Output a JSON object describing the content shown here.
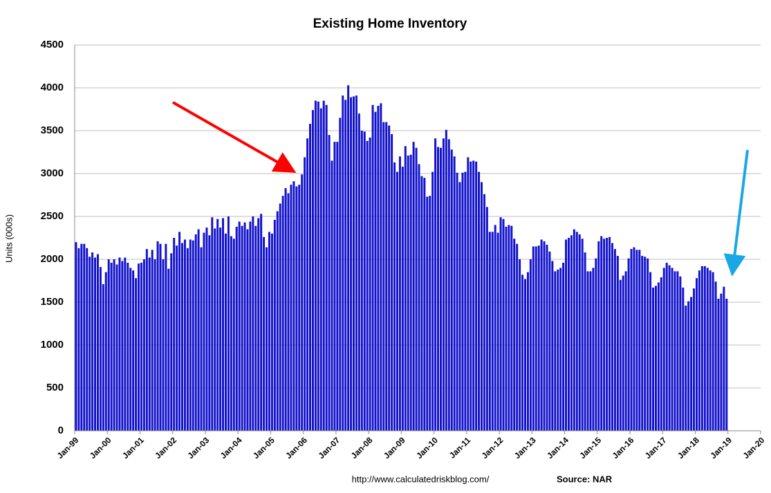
{
  "chart_data": {
    "type": "bar",
    "title": "Existing Home Inventory",
    "y_label": "Units (000s)",
    "source_url": "http://www.calculatedriskblog.com/",
    "source": "Source: NAR",
    "color": "#1212cc",
    "grid": true,
    "ylim": [
      0,
      4500
    ],
    "yticks": [
      0,
      500,
      1000,
      1500,
      2000,
      2500,
      3000,
      3500,
      4000,
      4500
    ],
    "categories": [
      "Jan-99",
      null,
      null,
      null,
      null,
      null,
      null,
      null,
      null,
      null,
      null,
      null,
      "Jan-00",
      null,
      null,
      null,
      null,
      null,
      null,
      null,
      null,
      null,
      null,
      null,
      "Jan-01",
      null,
      null,
      null,
      null,
      null,
      null,
      null,
      null,
      null,
      null,
      null,
      "Jan-02",
      null,
      null,
      null,
      null,
      null,
      null,
      null,
      null,
      null,
      null,
      null,
      "Jan-03",
      null,
      null,
      null,
      null,
      null,
      null,
      null,
      null,
      null,
      null,
      null,
      "Jan-04",
      null,
      null,
      null,
      null,
      null,
      null,
      null,
      null,
      null,
      null,
      null,
      "Jan-05",
      null,
      null,
      null,
      null,
      null,
      null,
      null,
      null,
      null,
      null,
      null,
      "Jan-06",
      null,
      null,
      null,
      null,
      null,
      null,
      null,
      null,
      null,
      null,
      null,
      "Jan-07",
      null,
      null,
      null,
      null,
      null,
      null,
      null,
      null,
      null,
      null,
      null,
      "Jan-08",
      null,
      null,
      null,
      null,
      null,
      null,
      null,
      null,
      null,
      null,
      null,
      "Jan-09",
      null,
      null,
      null,
      null,
      null,
      null,
      null,
      null,
      null,
      null,
      null,
      "Jan-10",
      null,
      null,
      null,
      null,
      null,
      null,
      null,
      null,
      null,
      null,
      null,
      "Jan-11",
      null,
      null,
      null,
      null,
      null,
      null,
      null,
      null,
      null,
      null,
      null,
      "Jan-12",
      null,
      null,
      null,
      null,
      null,
      null,
      null,
      null,
      null,
      null,
      null,
      "Jan-13",
      null,
      null,
      null,
      null,
      null,
      null,
      null,
      null,
      null,
      null,
      null,
      "Jan-14",
      null,
      null,
      null,
      null,
      null,
      null,
      null,
      null,
      null,
      null,
      null,
      "Jan-15",
      null,
      null,
      null,
      null,
      null,
      null,
      null,
      null,
      null,
      null,
      null,
      "Jan-16",
      null,
      null,
      null,
      null,
      null,
      null,
      null,
      null,
      null,
      null,
      null,
      "Jan-17",
      null,
      null,
      null,
      null,
      null,
      null,
      null,
      null,
      null,
      null,
      null,
      "Jan-18",
      null,
      null,
      null,
      null,
      null,
      null,
      null,
      null,
      null,
      null,
      null,
      "Jan-19",
      null,
      null,
      null,
      null,
      null,
      null,
      null,
      null,
      null,
      null,
      null,
      "Jan-20"
    ],
    "values": [
      2200,
      2130,
      2180,
      2180,
      2130,
      2030,
      2080,
      2020,
      2060,
      1910,
      1710,
      1850,
      2000,
      1960,
      2000,
      1940,
      2020,
      1980,
      2020,
      1960,
      1900,
      1870,
      1780,
      1950,
      1960,
      2000,
      2120,
      2020,
      2110,
      2000,
      2210,
      2180,
      2000,
      2180,
      1890,
      2070,
      2250,
      2160,
      2320,
      2190,
      2230,
      2130,
      2230,
      2220,
      2290,
      2350,
      2140,
      2310,
      2370,
      2280,
      2490,
      2360,
      2470,
      2370,
      2480,
      2300,
      2500,
      2270,
      2240,
      2380,
      2440,
      2390,
      2430,
      2350,
      2440,
      2500,
      2390,
      2480,
      2530,
      2260,
      2140,
      2320,
      2300,
      2460,
      2560,
      2650,
      2740,
      2830,
      2770,
      2870,
      2910,
      2850,
      2870,
      2990,
      3190,
      3410,
      3580,
      3740,
      3850,
      3840,
      3760,
      3850,
      3800,
      3450,
      3150,
      3370,
      3370,
      3650,
      3910,
      3860,
      4030,
      3890,
      3900,
      3910,
      3700,
      3500,
      3490,
      3380,
      3420,
      3800,
      3720,
      3790,
      3820,
      3600,
      3600,
      3560,
      3460,
      3130,
      3020,
      3200,
      3080,
      3320,
      3210,
      3220,
      3370,
      3300,
      3110,
      2970,
      2950,
      2730,
      2740,
      3020,
      3410,
      3310,
      3300,
      3410,
      3510,
      3400,
      3280,
      3200,
      3010,
      2900,
      3010,
      3020,
      3190,
      3140,
      3150,
      3140,
      3020,
      2900,
      2760,
      2610,
      2320,
      2320,
      2400,
      2310,
      2490,
      2470,
      2380,
      2400,
      2390,
      2240,
      2180,
      2000,
      1820,
      1770,
      1850,
      2000,
      2150,
      2150,
      2160,
      2230,
      2210,
      2170,
      2090,
      1980,
      1860,
      1880,
      1900,
      1960,
      2230,
      2250,
      2280,
      2350,
      2320,
      2290,
      2240,
      2080,
      1860,
      1860,
      1900,
      2010,
      2210,
      2270,
      2240,
      2250,
      2260,
      2190,
      2120,
      2040,
      1760,
      1810,
      1860,
      2010,
      2120,
      2140,
      2110,
      2110,
      2040,
      2030,
      2010,
      1850,
      1670,
      1690,
      1730,
      1790,
      1900,
      1960,
      1930,
      1900,
      1860,
      1860,
      1800,
      1670,
      1460,
      1510,
      1560,
      1660,
      1780,
      1870,
      1920,
      1920,
      1900,
      1870,
      1850,
      1740,
      1540,
      1600,
      1680,
      1540,
      null,
      null,
      null,
      null,
      null,
      null,
      null,
      null,
      null,
      null,
      null,
      null,
      null
    ]
  }
}
